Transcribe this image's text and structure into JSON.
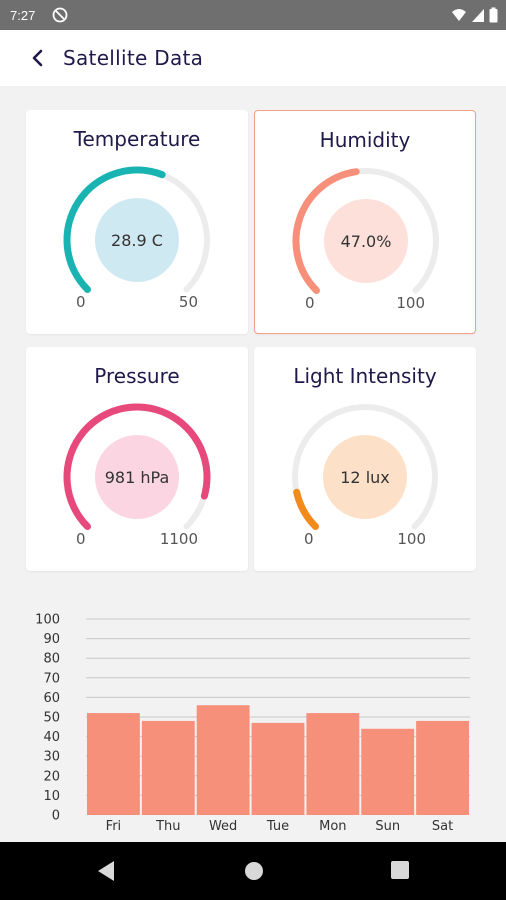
{
  "status_bar": {
    "time": "7:27",
    "app_icon": "do-not-disturb-icon",
    "right_icons": [
      "wifi-icon",
      "signal-icon",
      "battery-icon"
    ]
  },
  "app_bar": {
    "back_icon": "chevron-left-icon",
    "title": "Satellite Data"
  },
  "cards": [
    {
      "id": "temperature",
      "title": "Temperature",
      "value_text": "28.9 C",
      "min": "0",
      "max": "50",
      "value": 28.9,
      "range": [
        0,
        50
      ],
      "arc_color": "#19b3b1",
      "fill_color": "#cfe9f3",
      "selected": false
    },
    {
      "id": "humidity",
      "title": "Humidity",
      "value_text": "47.0%",
      "min": "0",
      "max": "100",
      "value": 47.0,
      "range": [
        0,
        100
      ],
      "arc_color": "#f7907a",
      "fill_color": "#fde0da",
      "selected": true
    },
    {
      "id": "pressure",
      "title": "Pressure",
      "value_text": "981 hPa",
      "min": "0",
      "max": "1100",
      "value": 981,
      "range": [
        0,
        1100
      ],
      "arc_color": "#e8497c",
      "fill_color": "#fbd6e2",
      "selected": false
    },
    {
      "id": "light-intensity",
      "title": "Light Intensity",
      "value_text": "12 lux",
      "min": "0",
      "max": "100",
      "value": 12,
      "range": [
        0,
        100
      ],
      "arc_color": "#f38a1c",
      "fill_color": "#fde0c8",
      "selected": false
    }
  ],
  "colors": {
    "gauge_track": "#ececec",
    "bar": "#f7907a",
    "grid": "#c8c8c8"
  },
  "chart_data": {
    "type": "bar",
    "categories": [
      "Fri",
      "Thu",
      "Wed",
      "Tue",
      "Mon",
      "Sun",
      "Sat"
    ],
    "values": [
      52,
      48,
      56,
      47,
      52,
      44,
      48
    ],
    "y_ticks": [
      "0",
      "10",
      "20",
      "30",
      "40",
      "50",
      "60",
      "70",
      "80",
      "90",
      "100"
    ],
    "ylim": [
      0,
      100
    ],
    "grid": true
  },
  "nav_bar": {
    "back_icon": "back-triangle-icon",
    "home_icon": "home-circle-icon",
    "recents_icon": "recents-square-icon"
  }
}
